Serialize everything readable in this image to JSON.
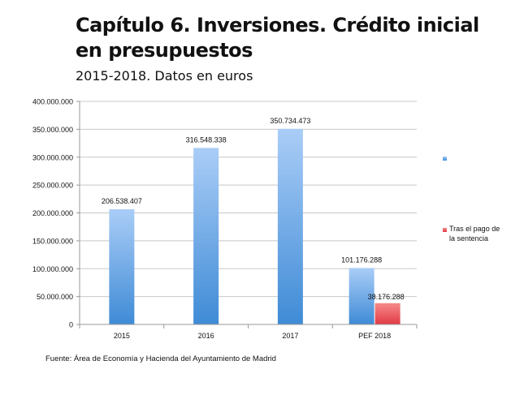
{
  "chart_data": {
    "type": "bar",
    "title": "Capítulo 6. Inversiones. Crédito inicial en presupuestos",
    "subtitle": "2015-2018. Datos en euros",
    "categories": [
      "2015",
      "2016",
      "2017",
      "PEF 2018"
    ],
    "series": [
      {
        "name": "",
        "color": "#8bb8ee",
        "values": [
          206538407,
          316548338,
          350734473,
          101176288
        ],
        "labels": [
          "206.538.407",
          "316.548.338",
          "350.734.473",
          "101.176.288"
        ]
      },
      {
        "name": "Tras el pago de la sentencia",
        "color": "#e8545a",
        "values": [
          null,
          null,
          null,
          38176288
        ],
        "labels": [
          "",
          "",
          "",
          "38.176.288"
        ]
      }
    ],
    "ylim": [
      0,
      400000000
    ],
    "yticks": [
      0,
      50000000,
      100000000,
      150000000,
      200000000,
      250000000,
      300000000,
      350000000,
      400000000
    ],
    "ytick_labels": [
      "0",
      "50.000.000",
      "100.000.000",
      "150.000.000",
      "200.000.000",
      "250.000.000",
      "300.000.000",
      "350.000.000",
      "400.000.000"
    ],
    "grid": true,
    "legend": "right",
    "xlabel": "",
    "ylabel": ""
  },
  "source": "Fuente: Área de Economía y Hacienda del Ayuntamiento de Madrid"
}
